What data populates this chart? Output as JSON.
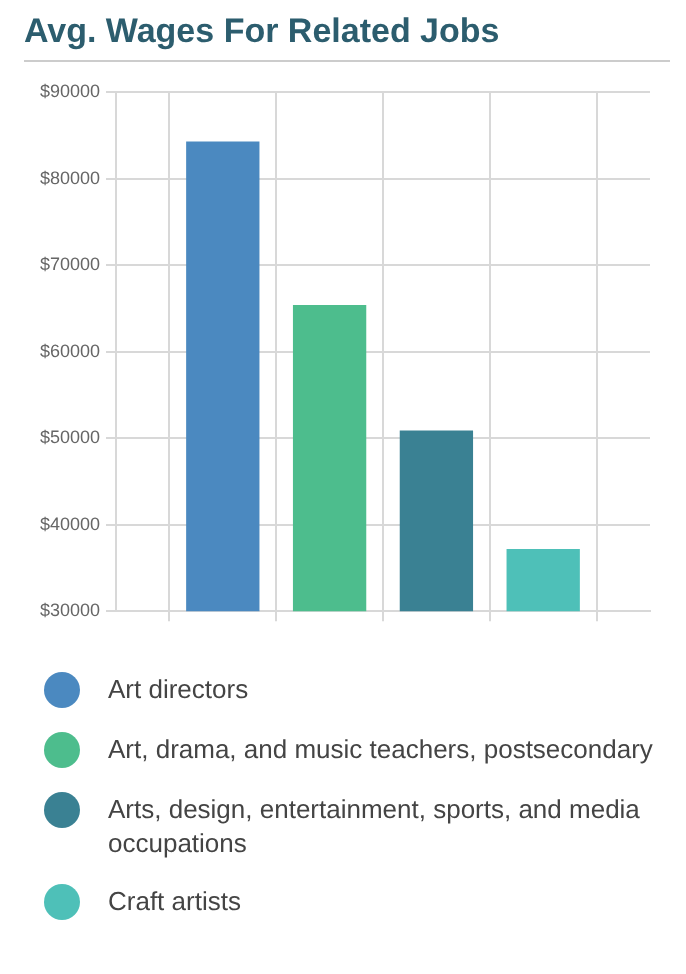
{
  "chart_data": {
    "type": "bar",
    "title": "Avg. Wages For Related Jobs",
    "categories": [
      null,
      null,
      null,
      null
    ],
    "series": [
      {
        "name": "Art directors",
        "color": "#4b89c0",
        "values": [
          84200,
          null,
          null,
          null
        ]
      },
      {
        "name": "Art, drama, and music teachers, postsecondary",
        "color": "#4dbd8d",
        "values": [
          null,
          65300,
          null,
          null
        ]
      },
      {
        "name": "Arts, design, entertainment, sports, and media occupations",
        "color": "#3a8193",
        "values": [
          null,
          null,
          50800,
          null
        ]
      },
      {
        "name": "Craft artists",
        "color": "#4ec0b8",
        "values": [
          null,
          null,
          null,
          37100
        ]
      }
    ],
    "ylim": [
      30000,
      90000
    ],
    "yticks": [
      {
        "value": 30000,
        "label": "$30000"
      },
      {
        "value": 40000,
        "label": "$40000"
      },
      {
        "value": 50000,
        "label": "$50000"
      },
      {
        "value": 60000,
        "label": "$60000"
      },
      {
        "value": 70000,
        "label": "$70000"
      },
      {
        "value": 80000,
        "label": "$80000"
      },
      {
        "value": 90000,
        "label": "$90000"
      }
    ],
    "grid": true,
    "legend": "bottom",
    "tick_labels": "y"
  }
}
